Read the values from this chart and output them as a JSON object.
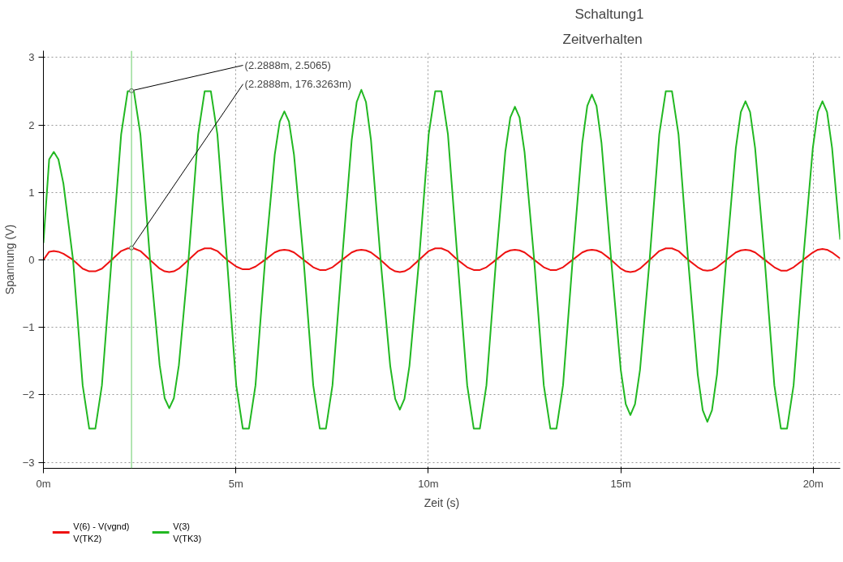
{
  "chart_data": {
    "type": "line",
    "title": "Schaltung1",
    "subtitle": "Zeitverhalten",
    "xlabel": "Zeit (s)",
    "ylabel": "Spannung (V)",
    "x": [
      0,
      0.15,
      0.27,
      0.39,
      0.52,
      0.77,
      1.02,
      1.19,
      1.35,
      1.52,
      1.77,
      2.02,
      2.19,
      2.35,
      2.52,
      2.77,
      3.02,
      3.15,
      3.27,
      3.39,
      3.52,
      3.77,
      4.02,
      4.19,
      4.35,
      4.52,
      4.77,
      5.01,
      5.18,
      5.34,
      5.51,
      5.76,
      6.01,
      6.14,
      6.26,
      6.38,
      6.51,
      6.76,
      7.01,
      7.18,
      7.34,
      7.51,
      7.76,
      8.01,
      8.14,
      8.26,
      8.38,
      8.51,
      8.76,
      9.01,
      9.14,
      9.26,
      9.38,
      9.51,
      9.76,
      10.01,
      10.18,
      10.34,
      10.51,
      10.76,
      11.01,
      11.18,
      11.34,
      11.51,
      11.76,
      12.0,
      12.13,
      12.25,
      12.37,
      12.5,
      12.75,
      13.0,
      13.17,
      13.33,
      13.5,
      13.75,
      14.0,
      14.13,
      14.25,
      14.37,
      14.5,
      14.75,
      15.0,
      15.13,
      15.25,
      15.37,
      15.5,
      15.75,
      16.0,
      16.17,
      16.33,
      16.5,
      16.75,
      17.0,
      17.13,
      17.25,
      17.37,
      17.5,
      17.74,
      17.99,
      18.12,
      18.24,
      18.36,
      18.49,
      18.74,
      18.99,
      19.16,
      19.32,
      19.49,
      19.74,
      19.99,
      20.12,
      20.24,
      20.36,
      20.49,
      20.7
    ],
    "series": [
      {
        "name": "V(6) - V(vgnd)\nV(TK2)",
        "color": "#ee1111",
        "values": [
          0,
          0.12,
          0.13,
          0.12,
          0.09,
          0,
          -0.13,
          -0.17,
          -0.17,
          -0.13,
          0,
          0.13,
          0.17,
          0.17,
          0.13,
          0,
          -0.13,
          -0.17,
          -0.18,
          -0.17,
          -0.13,
          0,
          0.13,
          0.17,
          0.17,
          0.13,
          0,
          -0.1,
          -0.14,
          -0.14,
          -0.1,
          0,
          0.11,
          0.14,
          0.15,
          0.14,
          0.11,
          0,
          -0.11,
          -0.15,
          -0.15,
          -0.11,
          0,
          0.11,
          0.14,
          0.15,
          0.14,
          0.11,
          0,
          -0.13,
          -0.17,
          -0.18,
          -0.17,
          -0.13,
          0,
          0.13,
          0.17,
          0.17,
          0.13,
          0,
          -0.11,
          -0.15,
          -0.15,
          -0.11,
          0,
          0.11,
          0.14,
          0.15,
          0.14,
          0.11,
          0,
          -0.11,
          -0.15,
          -0.15,
          -0.11,
          0,
          0.11,
          0.14,
          0.15,
          0.14,
          0.11,
          0,
          -0.13,
          -0.17,
          -0.18,
          -0.17,
          -0.13,
          0,
          0.13,
          0.17,
          0.17,
          0.13,
          0,
          -0.11,
          -0.15,
          -0.16,
          -0.15,
          -0.11,
          0,
          0.11,
          0.14,
          0.15,
          0.14,
          0.11,
          0,
          -0.11,
          -0.16,
          -0.16,
          -0.11,
          0,
          0.11,
          0.15,
          0.16,
          0.15,
          0.11,
          0.02
        ]
      },
      {
        "name": "V(3)\nV(TK3)",
        "color": "#22b822",
        "values": [
          0.25,
          1.49,
          1.6,
          1.49,
          1.13,
          0,
          -1.86,
          -2.5,
          -2.5,
          -1.86,
          0,
          1.86,
          2.5,
          2.5,
          1.86,
          0,
          -1.56,
          -2.05,
          -2.2,
          -2.05,
          -1.56,
          0,
          1.86,
          2.5,
          2.5,
          1.86,
          0,
          -1.86,
          -2.5,
          -2.5,
          -1.86,
          0,
          1.56,
          2.05,
          2.2,
          2.05,
          1.56,
          0,
          -1.86,
          -2.5,
          -2.5,
          -1.86,
          0,
          1.78,
          2.34,
          2.52,
          2.34,
          1.78,
          0,
          -1.57,
          -2.06,
          -2.22,
          -2.06,
          -1.57,
          0,
          1.86,
          2.5,
          2.5,
          1.86,
          0,
          -1.86,
          -2.5,
          -2.5,
          -1.86,
          0,
          1.6,
          2.11,
          2.27,
          2.11,
          1.6,
          0,
          -1.86,
          -2.5,
          -2.5,
          -1.86,
          0,
          1.73,
          2.28,
          2.45,
          2.28,
          1.73,
          0,
          -1.63,
          -2.14,
          -2.3,
          -2.14,
          -1.63,
          0,
          1.86,
          2.5,
          2.5,
          1.86,
          0,
          -1.7,
          -2.23,
          -2.4,
          -2.23,
          -1.7,
          0,
          1.66,
          2.19,
          2.35,
          2.19,
          1.66,
          0,
          -1.86,
          -2.5,
          -2.5,
          -1.86,
          0,
          1.66,
          2.19,
          2.35,
          2.19,
          1.66,
          0.3
        ]
      }
    ],
    "xlim": [
      0,
      20.7
    ],
    "xticks": [
      {
        "value": 0,
        "label": "0m"
      },
      {
        "value": 5,
        "label": "5m"
      },
      {
        "value": 10,
        "label": "10m"
      },
      {
        "value": 15,
        "label": "15m"
      },
      {
        "value": 20,
        "label": "20m"
      }
    ],
    "ylim": [
      -3.09,
      3.1
    ],
    "yticks": [
      -3,
      -2,
      -1,
      0,
      1,
      2,
      3
    ],
    "grid": true,
    "legend": "bottom left",
    "line_style": "solid",
    "ref_lines": [
      {
        "axis": "x",
        "value": 2.2888,
        "color": "#66cc66"
      }
    ],
    "annotations": [
      {
        "text": "(2.2888m, 2.5065)",
        "x": 2.2888,
        "y": 2.5065
      },
      {
        "text": "(2.2888m, 176.3263m)",
        "x": 2.2888,
        "y": 0.1763263
      }
    ]
  }
}
